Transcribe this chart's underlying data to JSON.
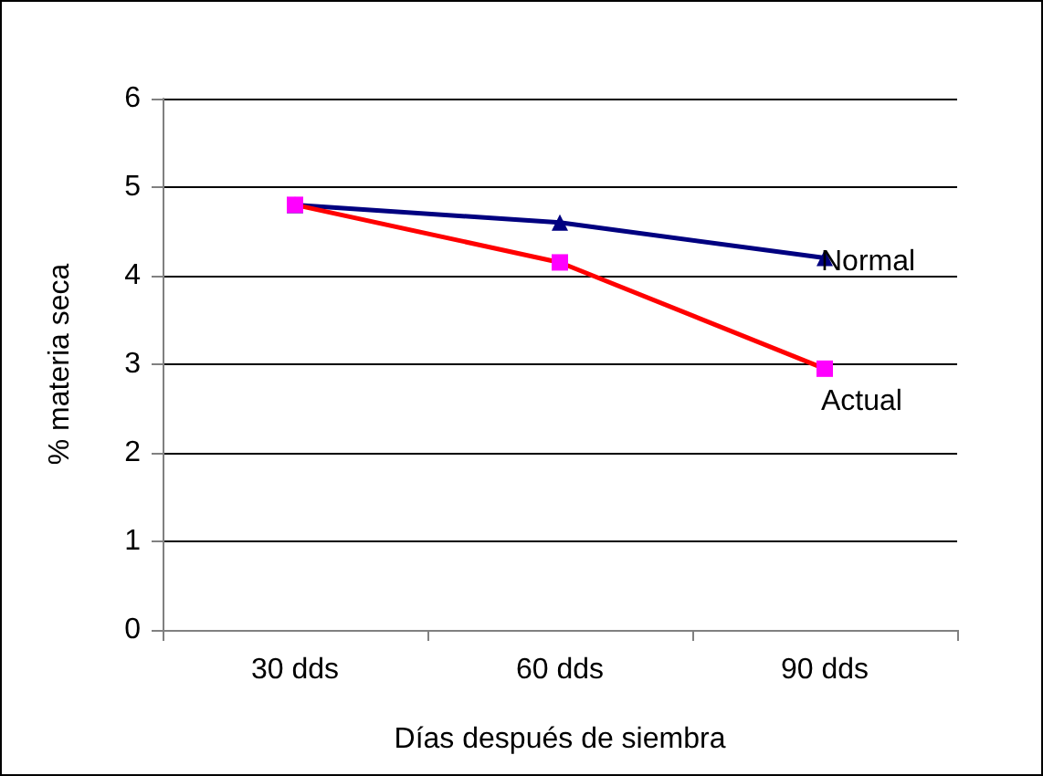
{
  "chart_data": {
    "type": "line",
    "xlabel": "Días después de siembra",
    "ylabel": "% materia seca",
    "categories": [
      "30 dds",
      "60 dds",
      "90 dds"
    ],
    "series": [
      {
        "name": "Normal",
        "color": "#000080",
        "marker": "triangle",
        "values": [
          4.8,
          4.6,
          4.2
        ]
      },
      {
        "name": "Actual",
        "color": "#ff0000",
        "colors": [
          "#ff00ff",
          "#ff00ff",
          "#ff00ff"
        ],
        "marker": "square",
        "values": [
          4.8,
          4.15,
          2.95
        ]
      }
    ],
    "ylim": [
      0,
      6
    ],
    "yticks": [
      0,
      1,
      2,
      3,
      4,
      5,
      6
    ],
    "grid": "y",
    "legend": false
  }
}
